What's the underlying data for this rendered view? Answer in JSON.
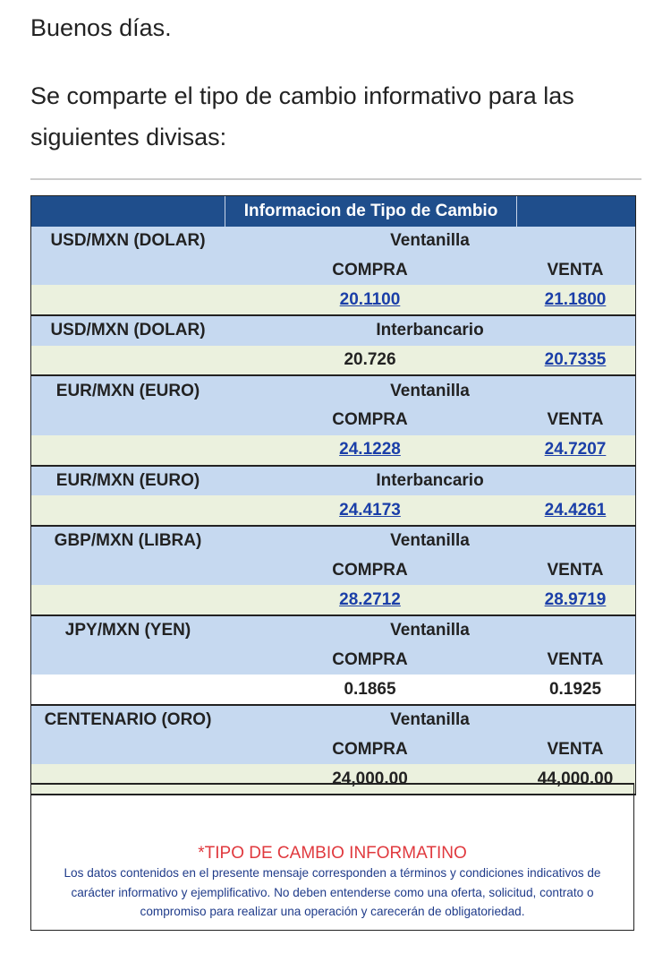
{
  "greeting": "Buenos días.",
  "intro": "Se comparte el tipo de cambio informativo para las siguientes divisas:",
  "table": {
    "header": "Informacion de Tipo de Cambio",
    "sections": [
      {
        "currency": "USD/MXN (DOLAR)",
        "type": "Ventanilla",
        "labels": [
          "COMPRA",
          "VENTA"
        ],
        "values": [
          "20.1100",
          "21.1800"
        ],
        "links": [
          true,
          true
        ],
        "shaded": true
      },
      {
        "currency": "USD/MXN (DOLAR)",
        "type": "Interbancario",
        "values": [
          "20.726",
          "20.7335"
        ],
        "links": [
          false,
          true
        ],
        "shaded": true
      },
      {
        "currency": "EUR/MXN (EURO)",
        "type": "Ventanilla",
        "labels": [
          "COMPRA",
          "VENTA"
        ],
        "values": [
          "24.1228",
          "24.7207"
        ],
        "links": [
          true,
          true
        ],
        "shaded": true
      },
      {
        "currency": "EUR/MXN (EURO)",
        "type": "Interbancario",
        "values": [
          "24.4173",
          "24.4261"
        ],
        "links": [
          true,
          true
        ],
        "shaded": true
      },
      {
        "currency": "GBP/MXN (LIBRA)",
        "type": "Ventanilla",
        "labels": [
          "COMPRA",
          "VENTA"
        ],
        "values": [
          "28.2712",
          "28.9719"
        ],
        "links": [
          true,
          true
        ],
        "shaded": true
      },
      {
        "currency": "JPY/MXN (YEN)",
        "type": "Ventanilla",
        "labels": [
          "COMPRA",
          "VENTA"
        ],
        "values": [
          "0.1865",
          "0.1925"
        ],
        "links": [
          false,
          false
        ],
        "shaded": false
      },
      {
        "currency": "CENTENARIO (ORO)",
        "type": "Ventanilla",
        "labels": [
          "COMPRA",
          "VENTA"
        ],
        "values": [
          "24,000.00",
          "44,000.00"
        ],
        "links": [
          false,
          false
        ],
        "shaded": true
      }
    ]
  },
  "footer": {
    "title": "*TIPO DE CAMBIO INFORMATINO",
    "lines": [
      "Los datos contenidos en el presente mensaje corresponden a términos y condiciones indicativos de",
      "carácter informativo y ejemplificativo. No deben entenderse como una oferta, solicitud, contrato o",
      "compromiso para realizar una operación y carecerán de obligatoriedad."
    ]
  }
}
